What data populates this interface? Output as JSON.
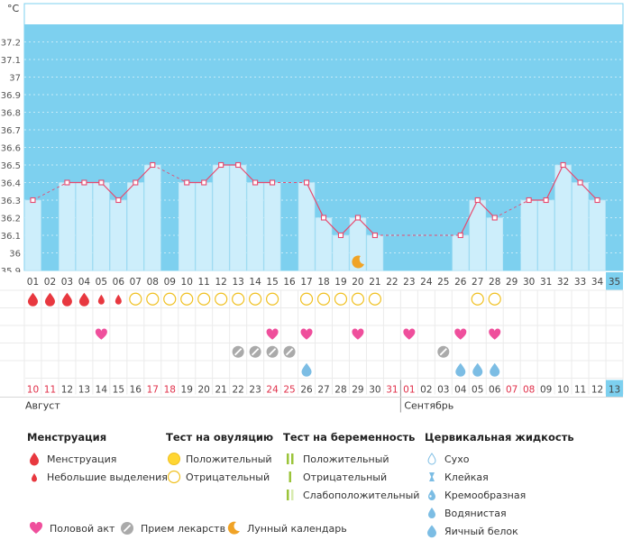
{
  "chart_data": {
    "type": "line",
    "ylabel": "°C",
    "ylim": [
      35.9,
      37.3
    ],
    "yticks": [
      "37.2",
      "37.1",
      "37",
      "36.9",
      "36.8",
      "36.7",
      "36.6",
      "36.5",
      "36.4",
      "36.3",
      "36.2",
      "36.1",
      "36",
      "35.9"
    ],
    "cycle_days": [
      "01",
      "02",
      "03",
      "04",
      "05",
      "06",
      "07",
      "08",
      "09",
      "10",
      "11",
      "12",
      "13",
      "14",
      "15",
      "16",
      "17",
      "18",
      "19",
      "20",
      "21",
      "22",
      "23",
      "24",
      "25",
      "26",
      "27",
      "28",
      "29",
      "30",
      "31",
      "32",
      "33",
      "34",
      "35"
    ],
    "dates": [
      "10",
      "11",
      "12",
      "13",
      "14",
      "15",
      "16",
      "17",
      "18",
      "19",
      "20",
      "21",
      "22",
      "23",
      "24",
      "25",
      "26",
      "27",
      "28",
      "29",
      "30",
      "31",
      "01",
      "02",
      "03",
      "04",
      "05",
      "06",
      "07",
      "08",
      "09",
      "10",
      "11",
      "12",
      "13"
    ],
    "red_dates_idx": [
      0,
      1,
      7,
      8,
      14,
      15,
      21,
      22,
      28,
      29
    ],
    "today_idx": 34,
    "months": [
      "Август",
      "Сентябрь"
    ],
    "month_split_idx": 22,
    "temperature": [
      36.3,
      null,
      36.4,
      36.4,
      36.4,
      36.3,
      36.4,
      36.5,
      null,
      36.4,
      36.4,
      36.5,
      36.5,
      36.4,
      36.4,
      null,
      36.4,
      36.2,
      36.1,
      36.2,
      36.1,
      null,
      null,
      null,
      null,
      36.1,
      36.3,
      36.2,
      null,
      36.3,
      36.3,
      36.5,
      36.4,
      36.3,
      null
    ],
    "menstruation": [
      2,
      2,
      2,
      2,
      1,
      1,
      0,
      0,
      0,
      0,
      0,
      0,
      0,
      0,
      0,
      0,
      0,
      0,
      0,
      0,
      0,
      0,
      0,
      0,
      0,
      0,
      0,
      0,
      0,
      0,
      0,
      0,
      0,
      0,
      0
    ],
    "ovulation_test_negative": [
      6,
      7,
      8,
      9,
      10,
      11,
      12,
      13,
      14,
      16,
      17,
      18,
      19,
      20,
      26,
      27
    ],
    "intercourse": [
      4,
      14,
      16,
      19,
      22,
      25,
      27
    ],
    "medication": [
      12,
      13,
      14,
      15,
      24
    ],
    "cervical_fluid_watery": [
      16,
      25,
      26,
      27
    ],
    "moon_idx": 19,
    "legend": {
      "menstr": {
        "title": "Менструация",
        "items": [
          "Менструация",
          "Небольшие выделения"
        ]
      },
      "ovul": {
        "title": "Тест на овуляцию",
        "items": [
          "Положительный",
          "Отрицательный"
        ]
      },
      "preg": {
        "title": "Тест на беременность",
        "items": [
          "Положительный",
          "Отрицательный",
          "Слабоположительный"
        ]
      },
      "cerv": {
        "title": "Цервикальная жидкость",
        "items": [
          "Сухо",
          "Клейкая",
          "Кремообразная",
          "Водянистая",
          "Яичный белок"
        ]
      },
      "bottom": [
        "Половой акт",
        "Прием лекарств",
        "Лунный календарь"
      ]
    },
    "colors": {
      "bg": "#7dd0ef",
      "bar": "#cdeefb",
      "line": "#e8496e",
      "red": "#e8383f",
      "heart": "#ef4f9c",
      "pill": "#aaaaaa",
      "moon": "#f0a326",
      "drop": "#7cbde4",
      "yellow": "#ffe066"
    }
  }
}
